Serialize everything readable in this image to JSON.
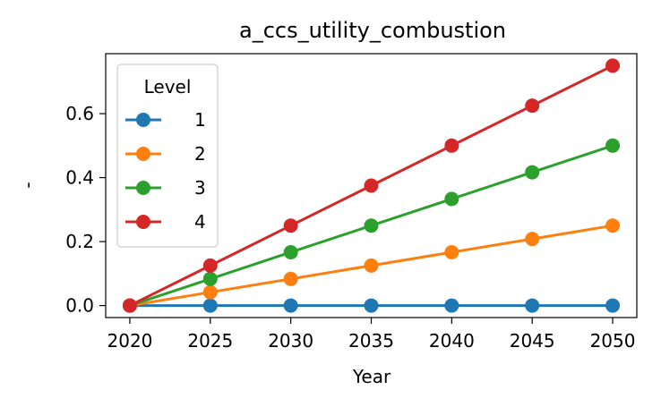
{
  "chart_data": {
    "type": "line",
    "title": "a_ccs_utility_combustion",
    "xlabel": "Year",
    "ylabel": "-",
    "x": [
      2020,
      2025,
      2030,
      2035,
      2040,
      2045,
      2050
    ],
    "xlim": [
      2018.5,
      2051.5
    ],
    "ylim": [
      -0.0375,
      0.7875
    ],
    "yticks": [
      0.0,
      0.2,
      0.4,
      0.6
    ],
    "ytick_labels": [
      "0.0",
      "0.2",
      "0.4",
      "0.6"
    ],
    "xtick_labels": [
      "2020",
      "2025",
      "2030",
      "2035",
      "2040",
      "2045",
      "2050"
    ],
    "grid": false,
    "legend": {
      "title": "Level",
      "placement": "upper-left"
    },
    "series": [
      {
        "name": "1",
        "color": "#1f77b4",
        "values": [
          0,
          0,
          0,
          0,
          0,
          0,
          0
        ]
      },
      {
        "name": "2",
        "color": "#ff7f0e",
        "values": [
          0,
          0.0417,
          0.0833,
          0.125,
          0.1667,
          0.2083,
          0.25
        ]
      },
      {
        "name": "3",
        "color": "#2ca02c",
        "values": [
          0,
          0.0833,
          0.1667,
          0.25,
          0.3333,
          0.4167,
          0.5
        ]
      },
      {
        "name": "4",
        "color": "#d62728",
        "values": [
          0,
          0.125,
          0.25,
          0.375,
          0.5,
          0.625,
          0.75
        ]
      }
    ]
  }
}
